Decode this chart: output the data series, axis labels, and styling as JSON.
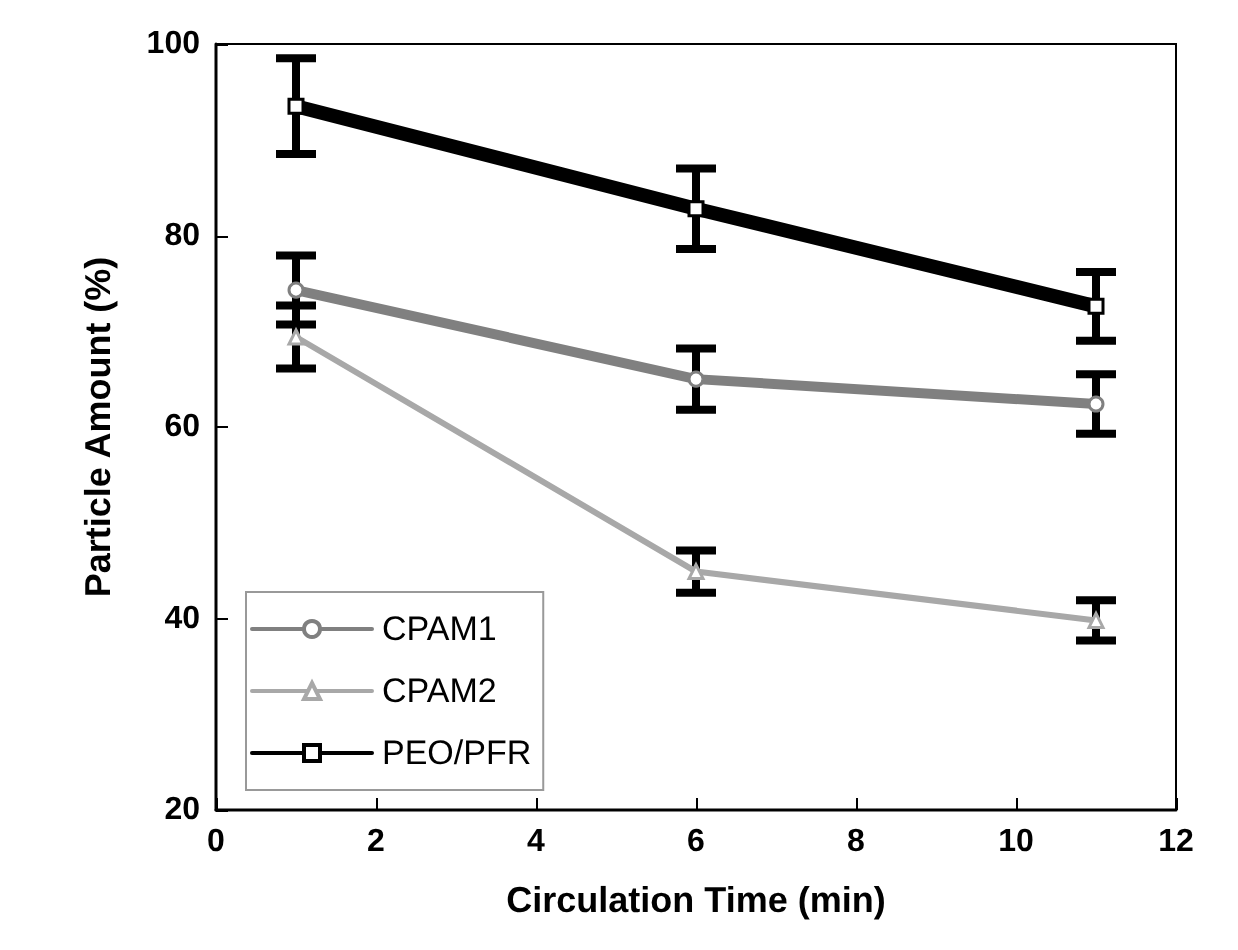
{
  "chart_data": {
    "type": "line",
    "xlabel": "Circulation Time (min)",
    "ylabel": "Particle Amount (%)",
    "x": [
      1,
      6,
      11
    ],
    "series": [
      {
        "name": "CPAM1",
        "color": "#808080",
        "marker": "circle",
        "values": [
          74.3,
          65.0,
          62.4
        ],
        "errors": [
          3.6,
          3.2,
          3.1
        ]
      },
      {
        "name": "CPAM2",
        "color": "#a8a8a8",
        "marker": "triangle",
        "values": [
          69.4,
          44.9,
          39.8
        ],
        "errors": [
          3.3,
          2.2,
          2.1
        ]
      },
      {
        "name": "PEO/PFR",
        "color": "#000000",
        "marker": "square",
        "values": [
          93.5,
          82.8,
          72.6
        ],
        "errors": [
          5,
          4.2,
          3.6
        ]
      }
    ],
    "xlim": [
      0,
      12
    ],
    "xticks": [
      0,
      2,
      4,
      6,
      8,
      10,
      12
    ],
    "ylim": [
      20,
      100
    ],
    "yticks": [
      20,
      40,
      60,
      80,
      100
    ],
    "grid": false,
    "legend": "bottom left"
  }
}
